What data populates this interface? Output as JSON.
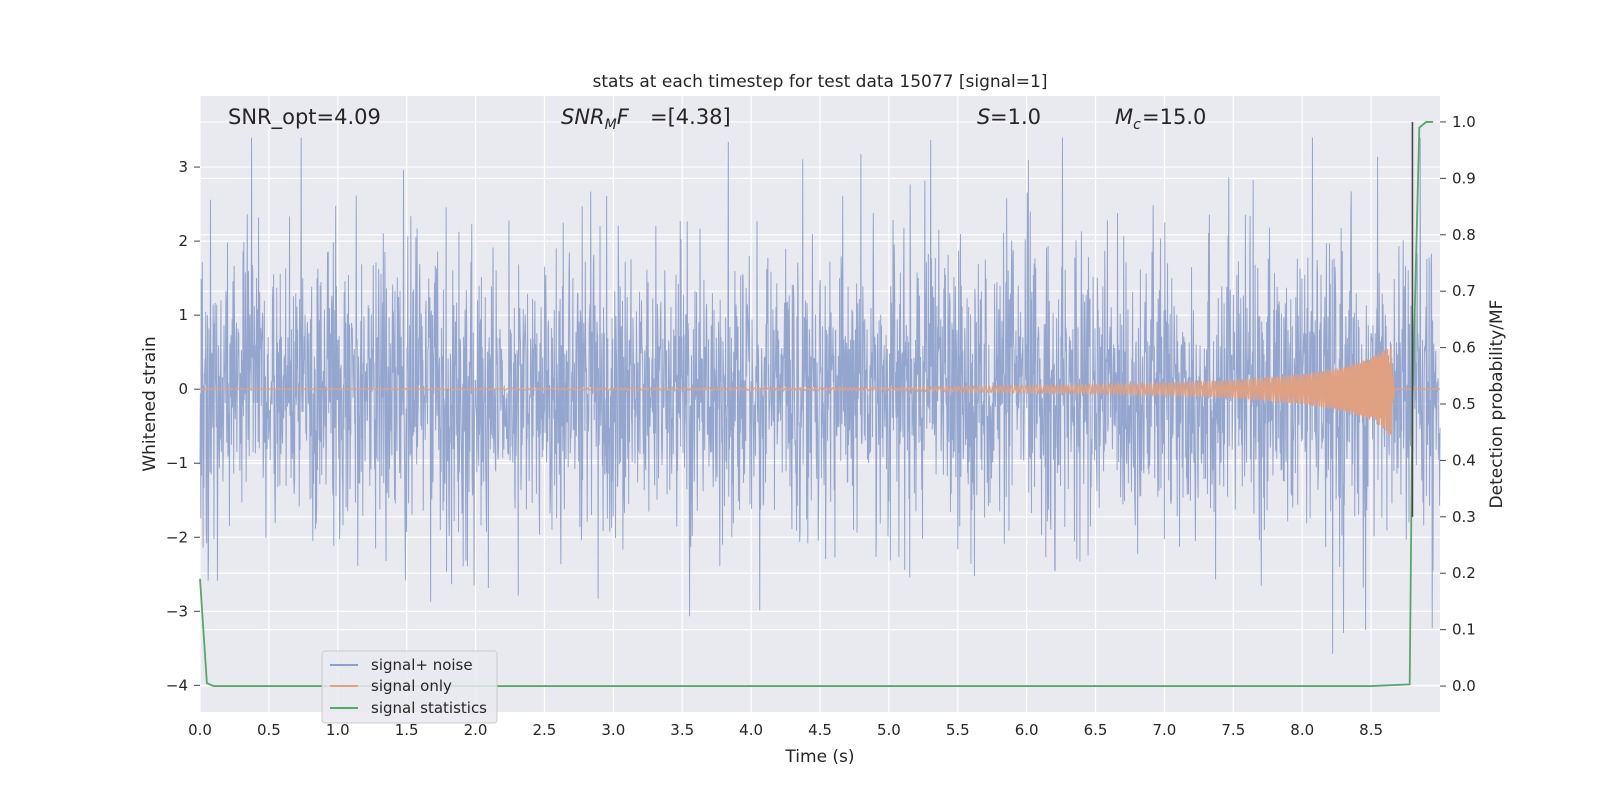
{
  "chart_data": {
    "type": "line",
    "title": "stats at each timestep for test data 15077 [signal=1]",
    "xlabel": "Time (s)",
    "ylabel_left": "Whitened strain",
    "ylabel_right": "Detection probability/MF",
    "xlim": [
      0.0,
      9.0
    ],
    "ylim_left": [
      -4.36,
      3.96
    ],
    "ylim_right": [
      -0.046,
      1.046
    ],
    "grid": true,
    "legend_placement": "lower-left",
    "x_ticks": [
      "0.0",
      "0.5",
      "1.0",
      "1.5",
      "2.0",
      "2.5",
      "3.0",
      "3.5",
      "4.0",
      "4.5",
      "5.0",
      "5.5",
      "6.0",
      "6.5",
      "7.0",
      "7.5",
      "8.0",
      "8.5"
    ],
    "y_ticks_left": [
      "3",
      "2",
      "1",
      "0",
      "−1",
      "−2",
      "−3",
      "−4"
    ],
    "y_ticks_right": [
      "1.0",
      "0.9",
      "0.8",
      "0.7",
      "0.6",
      "0.5",
      "0.4",
      "0.3",
      "0.2",
      "0.1",
      "0.0"
    ],
    "annotations": [
      {
        "id": "snr_opt",
        "text": "SNR_opt=4.09"
      },
      {
        "id": "snr_mf",
        "text": "=[4.38]"
      },
      {
        "id": "s",
        "text": "=1.0"
      },
      {
        "id": "mc",
        "text": "=15.0"
      }
    ],
    "series": [
      {
        "name": "signal+ noise",
        "color": "#8c9fca",
        "axis": "left",
        "description_of_envelope": "dense noise spanning roughly -2 to 2 with spikes to about 3.4 and -3.8",
        "x_range": [
          0.0,
          9.0
        ],
        "typical_amplitude": 1.5,
        "max_value": 3.4,
        "min_value": -3.8
      },
      {
        "name": "signal only",
        "color": "#e0a183",
        "axis": "left",
        "envelope": {
          "x": [
            0.0,
            5.0,
            6.0,
            7.0,
            7.5,
            8.0,
            8.3,
            8.5,
            8.6,
            8.65,
            8.67,
            8.7,
            9.0
          ],
          "amp": [
            0.0,
            0.02,
            0.05,
            0.08,
            0.12,
            0.2,
            0.3,
            0.42,
            0.55,
            0.65,
            0.0,
            0.0,
            0.0
          ]
        }
      },
      {
        "name": "signal statistics",
        "color": "#55a868",
        "axis": "right",
        "x": [
          0.0,
          0.05,
          0.1,
          0.15,
          0.5,
          1.0,
          2.0,
          3.0,
          4.0,
          5.0,
          6.0,
          7.0,
          8.0,
          8.5,
          8.78,
          8.8,
          8.85,
          8.9,
          8.95
        ],
        "y": [
          0.19,
          0.005,
          0.0,
          0.0,
          0.0,
          0.0,
          0.0,
          0.0,
          0.0,
          0.0,
          0.0,
          0.0,
          0.0,
          0.0,
          0.003,
          0.5,
          0.99,
          1.0,
          1.0
        ]
      }
    ],
    "vertical_marker": {
      "x": 8.8,
      "color": "#4a4a4a",
      "ylim_right": [
        0.3,
        1.0
      ]
    }
  }
}
